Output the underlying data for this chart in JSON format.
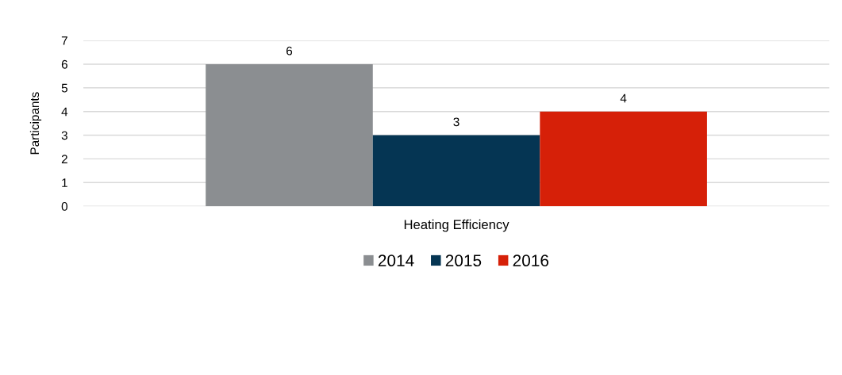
{
  "chart_data": {
    "type": "bar",
    "ylabel": "Participants",
    "categories": [
      "Heating Efficiency"
    ],
    "series": [
      {
        "name": "2014",
        "color": "#8b8e91",
        "values": [
          6
        ]
      },
      {
        "name": "2015",
        "color": "#053553",
        "values": [
          3
        ]
      },
      {
        "name": "2016",
        "color": "#d62008",
        "values": [
          4
        ]
      }
    ],
    "ylim": [
      0,
      7
    ],
    "yticks": [
      0,
      1,
      2,
      3,
      4,
      5,
      6,
      7
    ],
    "grid": "y",
    "legend": "bottom",
    "data_labels": true
  }
}
